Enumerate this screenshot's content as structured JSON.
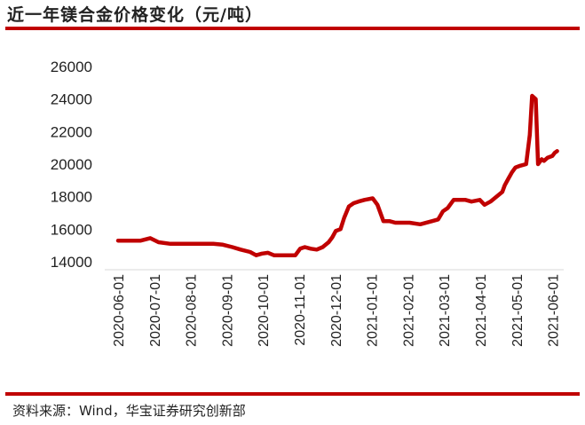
{
  "title": "近一年镁合金价格变化（元/吨）",
  "source": "资料来源：Wind，华宝证券研究创新部",
  "colors": {
    "accent": "#c00000",
    "line": "#c00000"
  },
  "chart_data": {
    "type": "line",
    "title": "近一年镁合金价格变化（元/吨）",
    "xlabel": "",
    "ylabel": "",
    "ylim": [
      14000,
      26000
    ],
    "yticks": [
      14000,
      16000,
      18000,
      20000,
      22000,
      24000,
      26000
    ],
    "ytick_labels": [
      "14000",
      "16000",
      "18000",
      "20000",
      "22000",
      "24000",
      "26000"
    ],
    "xtick_labels": [
      "2020-06-01",
      "2020-07-01",
      "2020-08-01",
      "2020-09-01",
      "2020-10-01",
      "2020-11-01",
      "2020-12-01",
      "2021-01-01",
      "2021-02-01",
      "2021-03-01",
      "2021-04-01",
      "2021-05-01",
      "2021-06-01"
    ],
    "grid": false,
    "legend": "none",
    "series": [
      {
        "x": [
          "2020-06-01",
          "2020-06-10",
          "2020-06-20",
          "2020-06-28",
          "2020-07-05",
          "2020-07-15",
          "2020-07-25",
          "2020-08-01",
          "2020-08-10",
          "2020-08-20",
          "2020-08-28",
          "2020-09-05",
          "2020-09-12",
          "2020-09-20",
          "2020-09-25",
          "2020-09-30",
          "2020-10-05",
          "2020-10-10",
          "2020-10-20",
          "2020-10-28",
          "2020-11-01",
          "2020-11-05",
          "2020-11-10",
          "2020-11-15",
          "2020-11-20",
          "2020-11-25",
          "2020-11-28",
          "2020-12-01",
          "2020-12-05",
          "2020-12-08",
          "2020-12-12",
          "2020-12-16",
          "2020-12-20",
          "2020-12-25",
          "2021-01-01",
          "2021-01-05",
          "2021-01-10",
          "2021-01-15",
          "2021-01-20",
          "2021-01-25",
          "2021-02-01",
          "2021-02-10",
          "2021-02-20",
          "2021-02-25",
          "2021-03-01",
          "2021-03-05",
          "2021-03-10",
          "2021-03-20",
          "2021-03-25",
          "2021-04-01",
          "2021-04-05",
          "2021-04-10",
          "2021-04-15",
          "2021-04-20",
          "2021-04-22",
          "2021-04-25",
          "2021-04-28",
          "2021-05-01",
          "2021-05-05",
          "2021-05-10",
          "2021-05-13",
          "2021-05-15",
          "2021-05-18",
          "2021-05-20",
          "2021-05-23",
          "2021-05-25",
          "2021-05-28",
          "2021-06-01",
          "2021-06-03",
          "2021-06-05"
        ],
        "y": [
          15300,
          15300,
          15300,
          15450,
          15200,
          15100,
          15100,
          15100,
          15100,
          15100,
          15050,
          14900,
          14750,
          14600,
          14400,
          14500,
          14550,
          14400,
          14400,
          14400,
          14800,
          14900,
          14800,
          14750,
          14900,
          15200,
          15500,
          15900,
          16000,
          16700,
          17400,
          17600,
          17700,
          17800,
          17900,
          17500,
          16500,
          16500,
          16400,
          16400,
          16400,
          16300,
          16500,
          16600,
          17100,
          17300,
          17800,
          17800,
          17700,
          17800,
          17500,
          17700,
          18000,
          18300,
          18700,
          19100,
          19500,
          19800,
          19900,
          20000,
          21800,
          24200,
          24000,
          20000,
          20300,
          20200,
          20400,
          20500,
          20700,
          20800
        ]
      }
    ]
  }
}
